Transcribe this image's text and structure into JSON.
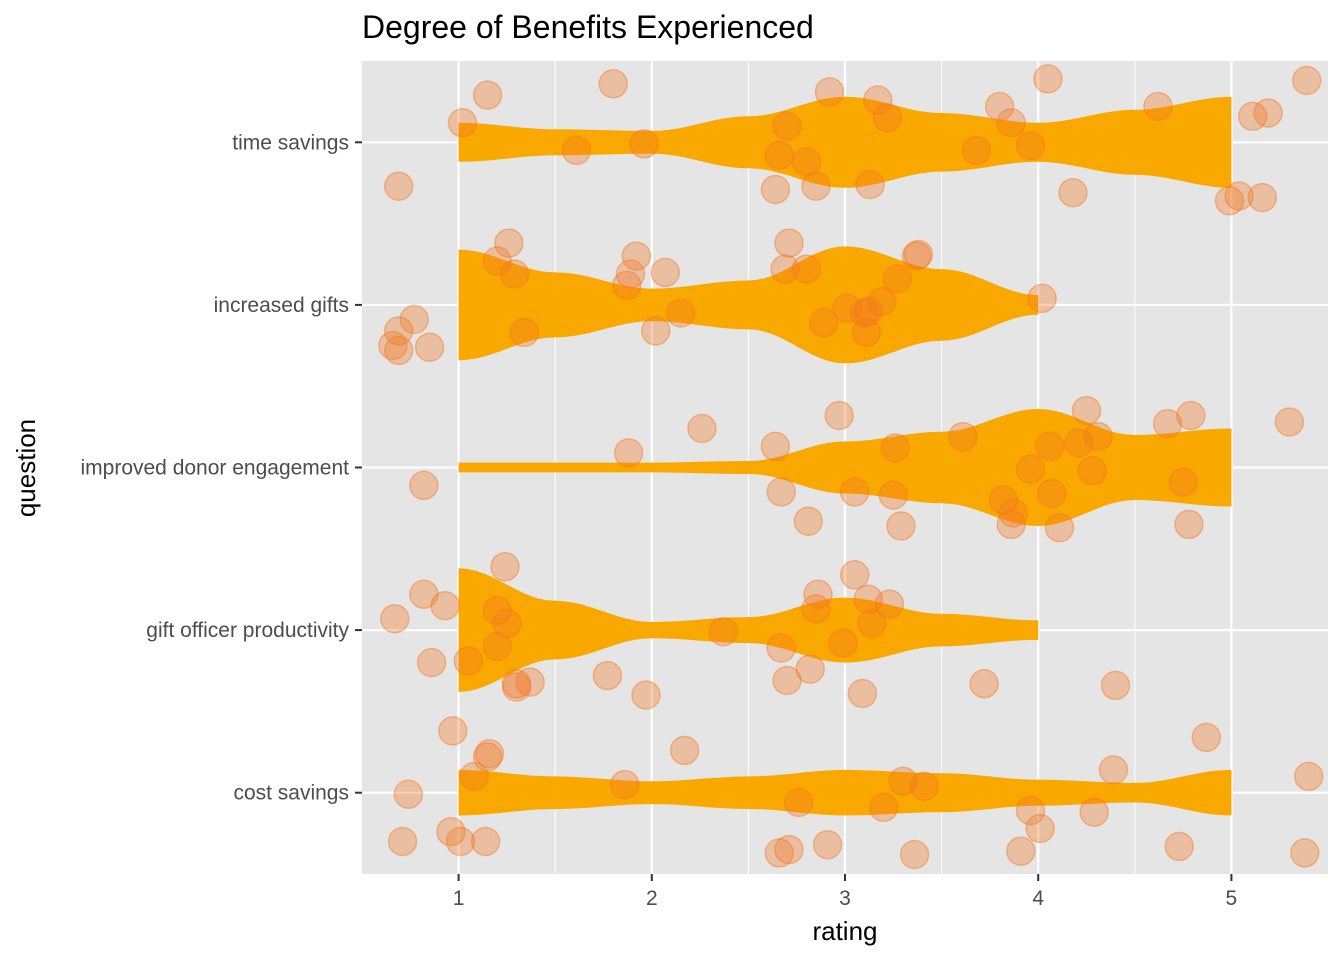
{
  "chart_data": {
    "type": "violin",
    "title": "Degree of Benefits Experienced",
    "xlabel": "rating",
    "ylabel": "question",
    "xlim": [
      0.5,
      5.5
    ],
    "x_ticks": [
      "1",
      "2",
      "3",
      "4",
      "5"
    ],
    "categories": [
      "time savings",
      "increased gifts",
      "improved donor engagement",
      "gift officer productivity",
      "cost savings"
    ],
    "grid": true,
    "colors": {
      "panel": "#e5e5e5",
      "grid": "#ffffff",
      "violin": "#f9a800",
      "points": "#f47722",
      "text": "#4d4d4d"
    },
    "violins": [
      {
        "category": "time savings",
        "x_range": [
          1,
          5
        ],
        "profile": [
          [
            1,
            0.12
          ],
          [
            1.5,
            0.08
          ],
          [
            2,
            0.07
          ],
          [
            2.5,
            0.16
          ],
          [
            3,
            0.28
          ],
          [
            3.5,
            0.18
          ],
          [
            4,
            0.12
          ],
          [
            4.5,
            0.2
          ],
          [
            5,
            0.28
          ]
        ]
      },
      {
        "category": "increased gifts",
        "x_range": [
          1,
          4
        ],
        "profile": [
          [
            1,
            0.34
          ],
          [
            1.5,
            0.2
          ],
          [
            2,
            0.1
          ],
          [
            2.5,
            0.15
          ],
          [
            3,
            0.36
          ],
          [
            3.5,
            0.22
          ],
          [
            4,
            0.06
          ]
        ]
      },
      {
        "category": "improved donor engagement",
        "x_range": [
          1,
          5
        ],
        "profile": [
          [
            1,
            0.03
          ],
          [
            1.5,
            0.03
          ],
          [
            2,
            0.03
          ],
          [
            2.5,
            0.04
          ],
          [
            3,
            0.16
          ],
          [
            3.5,
            0.22
          ],
          [
            4,
            0.36
          ],
          [
            4.5,
            0.2
          ],
          [
            5,
            0.24
          ]
        ]
      },
      {
        "category": "gift officer productivity",
        "x_range": [
          1,
          4
        ],
        "profile": [
          [
            1,
            0.38
          ],
          [
            1.5,
            0.18
          ],
          [
            2,
            0.05
          ],
          [
            2.5,
            0.08
          ],
          [
            3,
            0.2
          ],
          [
            3.5,
            0.1
          ],
          [
            4,
            0.06
          ]
        ]
      },
      {
        "category": "cost savings",
        "x_range": [
          1,
          5
        ],
        "profile": [
          [
            1,
            0.14
          ],
          [
            1.5,
            0.1
          ],
          [
            2,
            0.07
          ],
          [
            2.5,
            0.1
          ],
          [
            3,
            0.14
          ],
          [
            3.5,
            0.12
          ],
          [
            4,
            0.08
          ],
          [
            4.5,
            0.06
          ],
          [
            5,
            0.14
          ]
        ]
      }
    ],
    "points": [
      {
        "category": "time savings",
        "pts": [
          [
            0.69,
            0.27
          ],
          [
            1.02,
            -0.12
          ],
          [
            1.15,
            -0.29
          ],
          [
            1.61,
            0.05
          ],
          [
            1.8,
            -0.36
          ],
          [
            1.96,
            0.01
          ],
          [
            2.64,
            0.29
          ],
          [
            2.66,
            0.08
          ],
          [
            2.7,
            -0.1
          ],
          [
            2.8,
            0.12
          ],
          [
            2.85,
            0.27
          ],
          [
            2.92,
            -0.31
          ],
          [
            3.13,
            0.26
          ],
          [
            3.17,
            -0.26
          ],
          [
            3.22,
            -0.15
          ],
          [
            3.68,
            0.05
          ],
          [
            3.8,
            -0.22
          ],
          [
            3.86,
            -0.12
          ],
          [
            3.96,
            0.02
          ],
          [
            4.05,
            -0.39
          ],
          [
            4.18,
            0.31
          ],
          [
            4.62,
            -0.22
          ],
          [
            4.99,
            0.36
          ],
          [
            5.04,
            0.33
          ],
          [
            5.11,
            -0.16
          ],
          [
            5.16,
            0.34
          ],
          [
            5.19,
            -0.18
          ],
          [
            5.39,
            -0.38
          ]
        ]
      },
      {
        "category": "increased gifts",
        "pts": [
          [
            0.66,
            0.25
          ],
          [
            0.69,
            0.28
          ],
          [
            0.69,
            0.16
          ],
          [
            0.77,
            0.09
          ],
          [
            0.85,
            0.26
          ],
          [
            1.2,
            -0.27
          ],
          [
            1.26,
            -0.38
          ],
          [
            1.29,
            -0.19
          ],
          [
            1.34,
            0.17
          ],
          [
            1.87,
            -0.12
          ],
          [
            1.89,
            -0.19
          ],
          [
            1.92,
            -0.3
          ],
          [
            2.02,
            0.16
          ],
          [
            2.07,
            -0.2
          ],
          [
            2.15,
            0.05
          ],
          [
            2.69,
            -0.22
          ],
          [
            2.71,
            -0.38
          ],
          [
            2.8,
            -0.22
          ],
          [
            2.89,
            0.11
          ],
          [
            3.01,
            0.02
          ],
          [
            3.1,
            0.05
          ],
          [
            3.11,
            0.17
          ],
          [
            3.12,
            0.04
          ],
          [
            3.19,
            -0.02
          ],
          [
            3.27,
            -0.16
          ],
          [
            3.37,
            -0.3
          ],
          [
            3.38,
            -0.31
          ],
          [
            4.02,
            -0.04
          ]
        ]
      },
      {
        "category": "improved donor engagement",
        "pts": [
          [
            0.82,
            0.11
          ],
          [
            1.88,
            -0.09
          ],
          [
            2.26,
            -0.24
          ],
          [
            2.64,
            -0.13
          ],
          [
            2.67,
            0.15
          ],
          [
            2.81,
            0.33
          ],
          [
            2.97,
            -0.32
          ],
          [
            3.05,
            0.15
          ],
          [
            3.25,
            0.17
          ],
          [
            3.26,
            -0.12
          ],
          [
            3.29,
            0.36
          ],
          [
            3.61,
            -0.19
          ],
          [
            3.82,
            0.2
          ],
          [
            3.87,
            0.28
          ],
          [
            3.86,
            0.35
          ],
          [
            3.96,
            0.01
          ],
          [
            4.07,
            0.16
          ],
          [
            4.06,
            -0.13
          ],
          [
            4.11,
            0.37
          ],
          [
            4.21,
            -0.15
          ],
          [
            4.25,
            -0.35
          ],
          [
            4.28,
            0.02
          ],
          [
            4.31,
            -0.19
          ],
          [
            4.67,
            -0.27
          ],
          [
            4.75,
            0.09
          ],
          [
            4.78,
            0.35
          ],
          [
            4.79,
            -0.32
          ],
          [
            5.3,
            -0.28
          ]
        ]
      },
      {
        "category": "gift officer productivity",
        "pts": [
          [
            0.67,
            -0.07
          ],
          [
            0.82,
            -0.22
          ],
          [
            0.86,
            0.2
          ],
          [
            0.93,
            -0.15
          ],
          [
            1.05,
            0.19
          ],
          [
            1.2,
            0.1
          ],
          [
            1.2,
            -0.12
          ],
          [
            1.25,
            -0.04
          ],
          [
            1.24,
            -0.39
          ],
          [
            1.3,
            0.33
          ],
          [
            1.3,
            0.35
          ],
          [
            1.37,
            0.32
          ],
          [
            1.77,
            0.28
          ],
          [
            1.97,
            0.4
          ],
          [
            2.37,
            0.01
          ],
          [
            2.67,
            0.11
          ],
          [
            2.7,
            0.31
          ],
          [
            2.82,
            0.24
          ],
          [
            2.85,
            -0.13
          ],
          [
            2.86,
            -0.22
          ],
          [
            2.99,
            0.08
          ],
          [
            3.05,
            -0.34
          ],
          [
            3.09,
            0.39
          ],
          [
            3.12,
            -0.19
          ],
          [
            3.14,
            -0.04
          ],
          [
            3.23,
            -0.16
          ],
          [
            3.72,
            0.33
          ],
          [
            4.4,
            0.34
          ]
        ]
      },
      {
        "category": "cost savings",
        "pts": [
          [
            0.71,
            0.3
          ],
          [
            0.74,
            0.01
          ],
          [
            0.97,
            -0.38
          ],
          [
            0.96,
            0.24
          ],
          [
            1.01,
            0.3
          ],
          [
            1.08,
            -0.1
          ],
          [
            1.14,
            0.3
          ],
          [
            1.15,
            -0.22
          ],
          [
            1.16,
            -0.24
          ],
          [
            1.86,
            -0.05
          ],
          [
            2.17,
            -0.26
          ],
          [
            2.66,
            0.37
          ],
          [
            2.71,
            0.35
          ],
          [
            2.76,
            0.06
          ],
          [
            2.91,
            0.32
          ],
          [
            3.2,
            0.09
          ],
          [
            3.3,
            -0.07
          ],
          [
            3.36,
            0.38
          ],
          [
            3.41,
            -0.04
          ],
          [
            3.91,
            0.36
          ],
          [
            3.96,
            0.11
          ],
          [
            4.01,
            0.22
          ],
          [
            4.29,
            0.12
          ],
          [
            4.39,
            -0.14
          ],
          [
            4.73,
            0.33
          ],
          [
            4.87,
            -0.34
          ],
          [
            5.38,
            0.37
          ],
          [
            5.4,
            -0.1
          ]
        ]
      }
    ]
  }
}
